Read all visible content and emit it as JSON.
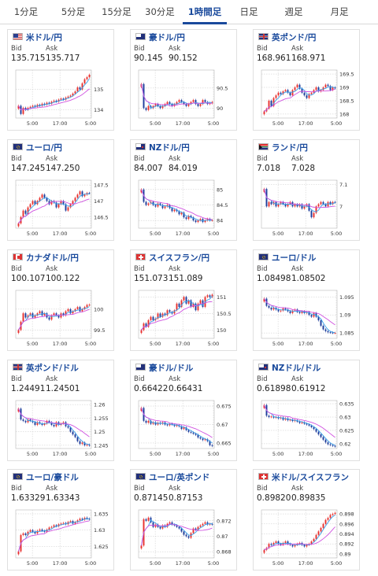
{
  "tabs": [
    {
      "label": "1分足",
      "active": false
    },
    {
      "label": "5分足",
      "active": false
    },
    {
      "label": "15分足",
      "active": false
    },
    {
      "label": "30分足",
      "active": false
    },
    {
      "label": "1時間足",
      "active": true
    },
    {
      "label": "日足",
      "active": false
    },
    {
      "label": "週足",
      "active": false
    },
    {
      "label": "月足",
      "active": false
    }
  ],
  "quote_labels": {
    "bid": "Bid",
    "ask": "Ask"
  },
  "colors": {
    "up": "#e8312f",
    "down": "#1e3d9c",
    "ma_short": "#3aa1ea",
    "ma_long": "#d052e0",
    "grid": "#c8c8c8",
    "accent": "#1a4a9c"
  },
  "cards": [
    {
      "pair": "米ドル/円",
      "flag": "flag-us",
      "bid": "135.715",
      "ask": "135.717",
      "chart_data": {
        "type": "candlestick",
        "x_ticks": [
          "5:00",
          "17:00",
          "5:00"
        ],
        "y_ticks": [
          "135",
          "134"
        ],
        "ylim": [
          133.6,
          135.95
        ],
        "close": [
          134.2,
          133.8,
          134.1,
          134.0,
          134.1,
          134.15,
          134.2,
          134.15,
          134.25,
          134.2,
          134.3,
          134.25,
          134.35,
          134.3,
          134.4,
          134.45,
          134.4,
          134.5,
          134.55,
          134.5,
          134.6,
          134.65,
          134.7,
          134.8,
          134.9,
          135.1,
          135.0,
          135.3,
          135.5,
          135.6,
          135.72
        ]
      }
    },
    {
      "pair": "豪ドル/円",
      "flag": "flag-au",
      "bid": "90.145",
      "ask": "90.152",
      "chart_data": {
        "type": "candlestick",
        "x_ticks": [
          "5:00",
          "17:00",
          "5:00"
        ],
        "y_ticks": [
          "90.5",
          "90"
        ],
        "ylim": [
          89.75,
          90.95
        ],
        "close": [
          90.6,
          90.0,
          89.95,
          90.05,
          90.0,
          90.05,
          90.1,
          90.05,
          90.0,
          90.05,
          90.1,
          90.15,
          90.1,
          90.05,
          90.1,
          90.15,
          90.2,
          90.15,
          90.1,
          90.05,
          90.1,
          90.15,
          90.2,
          90.1,
          90.05,
          90.1,
          90.2,
          90.15,
          90.1,
          90.12,
          90.15
        ]
      }
    },
    {
      "pair": "英ポンド/円",
      "flag": "flag-gb",
      "bid": "168.961",
      "ask": "168.971",
      "chart_data": {
        "type": "candlestick",
        "x_ticks": [
          "5:00",
          "17:00",
          "5:00"
        ],
        "y_ticks": [
          "169.5",
          "169",
          "168.5",
          "168"
        ],
        "ylim": [
          167.85,
          169.65
        ],
        "close": [
          168.1,
          168.2,
          168.5,
          168.3,
          168.6,
          168.7,
          168.8,
          168.75,
          168.85,
          168.9,
          168.8,
          168.7,
          168.9,
          169.0,
          169.1,
          168.95,
          168.8,
          168.7,
          168.6,
          168.75,
          168.8,
          168.9,
          169.0,
          168.85,
          168.9,
          169.0,
          169.1,
          169.05,
          168.9,
          169.0,
          168.96
        ]
      }
    },
    {
      "pair": "ユーロ/円",
      "flag": "flag-eu",
      "bid": "147.245",
      "ask": "147.250",
      "chart_data": {
        "type": "candlestick",
        "x_ticks": [
          "5:00",
          "17:00",
          "5:00"
        ],
        "y_ticks": [
          "147.5",
          "147",
          "146.5"
        ],
        "ylim": [
          146.15,
          147.65
        ],
        "close": [
          146.3,
          146.5,
          146.7,
          146.6,
          146.8,
          146.9,
          147.0,
          146.9,
          147.0,
          147.1,
          147.2,
          147.1,
          147.0,
          146.9,
          147.0,
          146.95,
          146.8,
          146.9,
          147.0,
          146.9,
          146.7,
          146.8,
          146.9,
          147.0,
          147.1,
          147.2,
          147.3,
          147.15,
          147.2,
          147.25,
          147.245
        ]
      }
    },
    {
      "pair": "NZドル/円",
      "flag": "flag-nz",
      "bid": "84.007",
      "ask": "84.019",
      "chart_data": {
        "type": "candlestick",
        "x_ticks": [
          "5:00",
          "17:00",
          "5:00"
        ],
        "y_ticks": [
          "85",
          "84.5",
          "84"
        ],
        "ylim": [
          83.75,
          85.3
        ],
        "close": [
          85.0,
          84.6,
          84.5,
          84.55,
          84.6,
          84.5,
          84.45,
          84.55,
          84.5,
          84.4,
          84.45,
          84.5,
          84.4,
          84.3,
          84.35,
          84.3,
          84.2,
          84.25,
          84.1,
          84.05,
          84.15,
          84.1,
          84.0,
          83.95,
          84.0,
          84.05,
          83.95,
          84.0,
          84.05,
          84.0,
          84.01
        ]
      }
    },
    {
      "pair": "ランド/円",
      "flag": "flag-za",
      "bid": "7.018",
      "ask": "7.028",
      "chart_data": {
        "type": "candlestick",
        "x_ticks": [
          "5:00",
          "17:00",
          "5:00"
        ],
        "y_ticks": [
          "7.1",
          "7"
        ],
        "ylim": [
          6.9,
          7.12
        ],
        "close": [
          7.08,
          7.0,
          7.02,
          7.01,
          7.02,
          7.0,
          7.01,
          7.02,
          7.01,
          7.0,
          7.01,
          7.02,
          7.0,
          7.01,
          7.0,
          7.01,
          6.99,
          7.0,
          7.01,
          6.98,
          6.95,
          6.97,
          7.0,
          7.01,
          7.02,
          7.01,
          7.0,
          7.02,
          7.01,
          7.02,
          7.018
        ]
      }
    },
    {
      "pair": "カナダドル/円",
      "flag": "flag-ca",
      "bid": "100.107",
      "ask": "100.122",
      "chart_data": {
        "type": "candlestick",
        "x_ticks": [
          "5:00",
          "17:00",
          "5:00"
        ],
        "y_ticks": [
          "100",
          "99.5"
        ],
        "ylim": [
          99.3,
          100.45
        ],
        "close": [
          99.5,
          99.7,
          99.9,
          99.8,
          99.85,
          99.9,
          99.8,
          99.85,
          99.9,
          99.95,
          99.85,
          99.9,
          99.8,
          99.75,
          99.85,
          99.9,
          99.85,
          99.8,
          99.9,
          99.85,
          99.95,
          100.0,
          99.9,
          99.95,
          100.0,
          100.05,
          99.95,
          100.0,
          100.05,
          100.1,
          100.107
        ]
      }
    },
    {
      "pair": "スイスフラン/円",
      "flag": "flag-ch",
      "bid": "151.073",
      "ask": "151.089",
      "chart_data": {
        "type": "candlestick",
        "x_ticks": [
          "5:00",
          "17:00",
          "5:00"
        ],
        "y_ticks": [
          "151",
          "150.5",
          "150"
        ],
        "ylim": [
          149.75,
          151.2
        ],
        "close": [
          150.0,
          150.2,
          150.1,
          150.3,
          150.4,
          150.3,
          150.35,
          150.5,
          150.4,
          150.5,
          150.45,
          150.6,
          150.55,
          150.5,
          150.6,
          150.8,
          150.7,
          150.9,
          151.0,
          150.8,
          150.9,
          150.7,
          150.8,
          150.6,
          150.8,
          150.9,
          150.7,
          151.0,
          151.05,
          151.0,
          151.07
        ]
      }
    },
    {
      "pair": "ユーロ/ドル",
      "flag": "flag-eu",
      "bid": "1.08498",
      "ask": "1.08502",
      "chart_data": {
        "type": "candlestick",
        "x_ticks": [
          "5:00",
          "17:00",
          "5:00"
        ],
        "y_ticks": [
          "1.095",
          "1.09",
          "1.085"
        ],
        "ylim": [
          1.0835,
          1.0968
        ],
        "close": [
          1.0945,
          1.0925,
          1.092,
          1.0915,
          1.092,
          1.0915,
          1.091,
          1.0912,
          1.0918,
          1.0915,
          1.091,
          1.0905,
          1.0912,
          1.0915,
          1.0908,
          1.0905,
          1.091,
          1.0905,
          1.0908,
          1.09,
          1.0895,
          1.0905,
          1.0895,
          1.0885,
          1.087,
          1.086,
          1.0855,
          1.0852,
          1.0851,
          1.085,
          1.085
        ]
      }
    },
    {
      "pair": "英ポンド/ドル",
      "flag": "flag-gb",
      "bid": "1.24491",
      "ask": "1.24501",
      "chart_data": {
        "type": "candlestick",
        "x_ticks": [
          "5:00",
          "17:00",
          "5:00"
        ],
        "y_ticks": [
          "1.26",
          "1.255",
          "1.25",
          "1.245"
        ],
        "ylim": [
          1.2438,
          1.2615
        ],
        "close": [
          1.2585,
          1.2545,
          1.254,
          1.2535,
          1.2545,
          1.254,
          1.2535,
          1.2525,
          1.2535,
          1.253,
          1.2525,
          1.253,
          1.254,
          1.2535,
          1.2525,
          1.252,
          1.2535,
          1.2525,
          1.253,
          1.2535,
          1.252,
          1.2515,
          1.25,
          1.249,
          1.248,
          1.2465,
          1.2455,
          1.246,
          1.245,
          1.2452,
          1.2449
        ]
      }
    },
    {
      "pair": "豪ドル/ドル",
      "flag": "flag-au",
      "bid": "0.66422",
      "ask": "0.66431",
      "chart_data": {
        "type": "candlestick",
        "x_ticks": [
          "5:00",
          "17:00",
          "5:00"
        ],
        "y_ticks": [
          "0.675",
          "0.67",
          "0.665"
        ],
        "ylim": [
          0.6635,
          0.6765
        ],
        "close": [
          0.6745,
          0.671,
          0.6705,
          0.671,
          0.6702,
          0.6706,
          0.67,
          0.6705,
          0.6702,
          0.6706,
          0.67,
          0.6698,
          0.6702,
          0.67,
          0.6696,
          0.6698,
          0.6695,
          0.6688,
          0.6692,
          0.6685,
          0.668,
          0.6678,
          0.6675,
          0.6672,
          0.6665,
          0.6662,
          0.6658,
          0.666,
          0.6655,
          0.6644,
          0.6642
        ]
      }
    },
    {
      "pair": "NZドル/ドル",
      "flag": "flag-nz",
      "bid": "0.61898",
      "ask": "0.61912",
      "chart_data": {
        "type": "candlestick",
        "x_ticks": [
          "5:00",
          "17:00",
          "5:00"
        ],
        "y_ticks": [
          "0.635",
          "0.63",
          "0.625",
          "0.62"
        ],
        "ylim": [
          0.6182,
          0.6362
        ],
        "close": [
          0.6345,
          0.6305,
          0.63,
          0.6302,
          0.6298,
          0.63,
          0.6295,
          0.6298,
          0.629,
          0.6295,
          0.6288,
          0.629,
          0.6285,
          0.6288,
          0.6283,
          0.6278,
          0.628,
          0.6275,
          0.6272,
          0.6268,
          0.6262,
          0.6255,
          0.6245,
          0.6235,
          0.6225,
          0.6215,
          0.6205,
          0.6198,
          0.6195,
          0.6192,
          0.619
        ]
      }
    },
    {
      "pair": "ユーロ/豪ドル",
      "flag": "flag-eu",
      "bid": "1.63329",
      "ask": "1.63343",
      "chart_data": {
        "type": "candlestick",
        "x_ticks": [
          "5:00",
          "17:00",
          "5:00"
        ],
        "y_ticks": [
          "1.635",
          "1.63",
          "1.625"
        ],
        "ylim": [
          1.6215,
          1.6362
        ],
        "close": [
          1.6235,
          1.6285,
          1.629,
          1.6285,
          1.6295,
          1.63,
          1.6295,
          1.629,
          1.6298,
          1.6302,
          1.6298,
          1.6295,
          1.6302,
          1.6308,
          1.631,
          1.6315,
          1.6312,
          1.6318,
          1.632,
          1.6322,
          1.6318,
          1.6325,
          1.6328,
          1.632,
          1.6325,
          1.633,
          1.6335,
          1.6332,
          1.6338,
          1.6335,
          1.6333
        ]
      }
    },
    {
      "pair": "ユーロ/英ポンド",
      "flag": "flag-eu",
      "bid": "0.87145",
      "ask": "0.87153",
      "chart_data": {
        "type": "candlestick",
        "x_ticks": [
          "5:00",
          "17:00",
          "5:00"
        ],
        "y_ticks": [
          "0.872",
          "0.87",
          "0.868"
        ],
        "ylim": [
          0.8672,
          0.8734
        ],
        "close": [
          0.8688,
          0.8722,
          0.872,
          0.8724,
          0.8718,
          0.8712,
          0.8715,
          0.8712,
          0.871,
          0.8714,
          0.8712,
          0.8716,
          0.8718,
          0.8715,
          0.8714,
          0.8712,
          0.871,
          0.8706,
          0.8702,
          0.87,
          0.8698,
          0.8704,
          0.871,
          0.8708,
          0.8712,
          0.8714,
          0.8716,
          0.8718,
          0.8715,
          0.8716,
          0.8715
        ]
      }
    },
    {
      "pair": "米ドル/スイスフラン",
      "flag": "flag-ch",
      "bid": "0.89820",
      "ask": "0.89835",
      "chart_data": {
        "type": "candlestick",
        "x_ticks": [
          "5:00",
          "17:00",
          "5:00"
        ],
        "y_ticks": [
          "0.898",
          "0.896",
          "0.894",
          "0.892",
          "0.89"
        ],
        "ylim": [
          0.8892,
          0.8988
        ],
        "close": [
          0.8908,
          0.8912,
          0.892,
          0.8918,
          0.8922,
          0.8925,
          0.892,
          0.8918,
          0.8922,
          0.8925,
          0.892,
          0.8918,
          0.8915,
          0.8918,
          0.892,
          0.8922,
          0.8918,
          0.8915,
          0.8918,
          0.892,
          0.8925,
          0.893,
          0.8938,
          0.8945,
          0.8952,
          0.896,
          0.8968,
          0.8972,
          0.8978,
          0.898,
          0.8982
        ]
      }
    }
  ]
}
